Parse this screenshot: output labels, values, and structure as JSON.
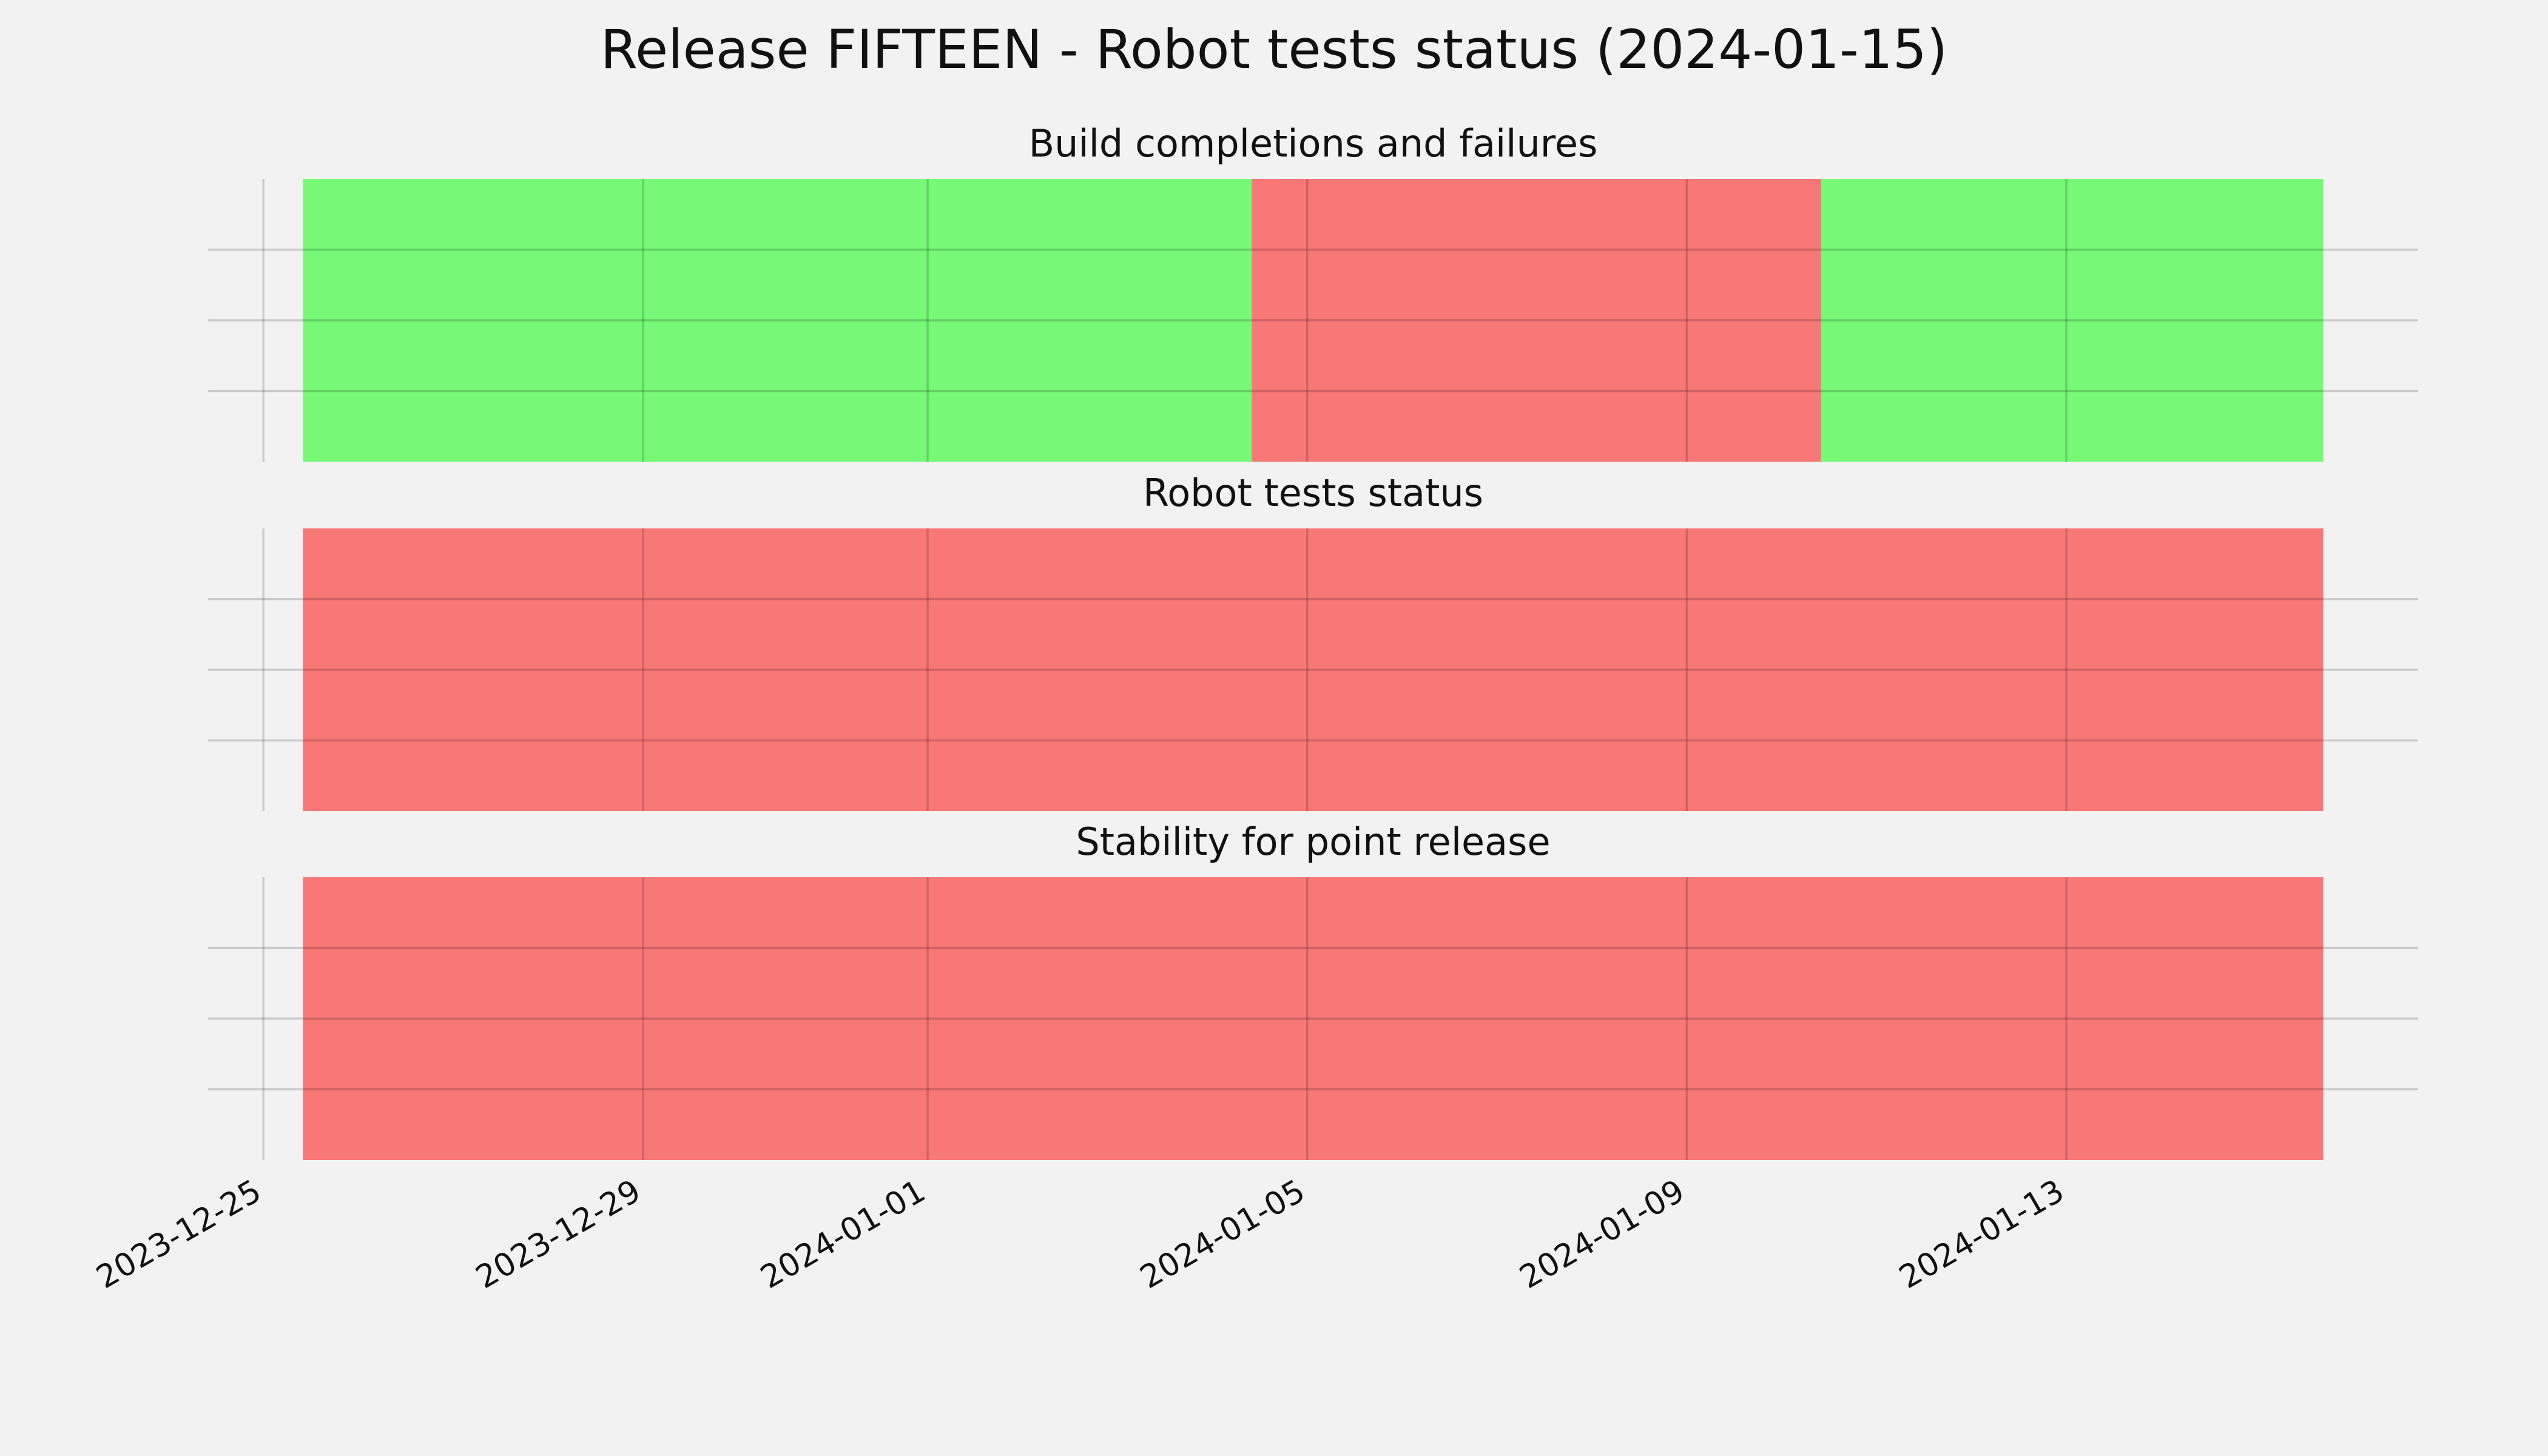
{
  "title": "Release FIFTEEN - Robot tests status (2024-01-15)",
  "chart_data": [
    {
      "type": "timeline",
      "title": "Build completions and failures",
      "segments": [
        {
          "start": "2023-12-25T10:00",
          "end": "2024-01-04T10:00",
          "color": "#77f877"
        },
        {
          "start": "2024-01-04T10:00",
          "end": "2024-01-10T10:00",
          "color": "#f87777"
        },
        {
          "start": "2024-01-10T10:00",
          "end": "2024-01-15T17:00",
          "color": "#77f877"
        }
      ],
      "xlim": [
        "2023-12-24T10:00",
        "2024-01-16T17:00"
      ],
      "xticks": [
        "2023-12-25",
        "2023-12-29",
        "2024-01-01",
        "2024-01-05",
        "2024-01-09",
        "2024-01-13"
      ],
      "ylim": [
        0,
        1
      ],
      "yticks": [
        0.25,
        0.5,
        0.75
      ],
      "grid": true
    },
    {
      "type": "timeline",
      "title": "Robot tests status",
      "segments": [
        {
          "start": "2023-12-25T10:00",
          "end": "2024-01-15T17:00",
          "color": "#f87777"
        }
      ],
      "xlim": [
        "2023-12-24T10:00",
        "2024-01-16T17:00"
      ],
      "xticks": [
        "2023-12-25",
        "2023-12-29",
        "2024-01-01",
        "2024-01-05",
        "2024-01-09",
        "2024-01-13"
      ],
      "ylim": [
        0,
        1
      ],
      "yticks": [
        0.25,
        0.5,
        0.75
      ],
      "grid": true
    },
    {
      "type": "timeline",
      "title": "Stability for point release",
      "segments": [
        {
          "start": "2023-12-25T10:00",
          "end": "2024-01-15T17:00",
          "color": "#f87777"
        }
      ],
      "xlim": [
        "2023-12-24T10:00",
        "2024-01-16T17:00"
      ],
      "xticks": [
        "2023-12-25",
        "2023-12-29",
        "2024-01-01",
        "2024-01-05",
        "2024-01-09",
        "2024-01-13"
      ],
      "ylim": [
        0,
        1
      ],
      "yticks": [
        0.25,
        0.5,
        0.75
      ],
      "grid": true
    }
  ]
}
